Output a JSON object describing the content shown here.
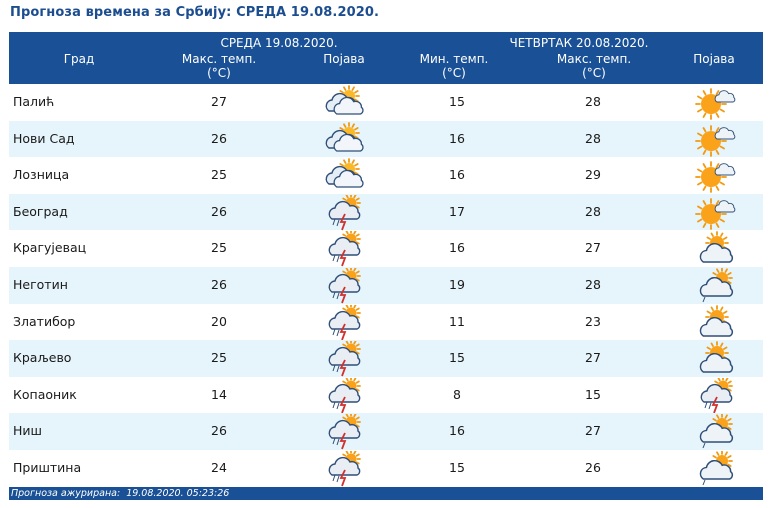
{
  "title": "Прогноза времена за Србију: СРЕДА  19.08.2020.",
  "header": {
    "city": "Град",
    "day1": "СРЕДА  19.08.2020.",
    "day1_max_line1": "Макс. темп.",
    "day1_max_line2": "(°C)",
    "day1_phen": "Појава",
    "day2": "ЧЕТВРТАК  20.08.2020.",
    "day2_min_line1": "Мин. темп.",
    "day2_min_line2": "(°C)",
    "day2_max_line1": "Макс. темп.",
    "day2_max_line2": "(°C)",
    "day2_phen": "Појава"
  },
  "rows": [
    {
      "city": "Палић",
      "d1max": "27",
      "d1icon": "cloudy-sun-icon",
      "d2min": "15",
      "d2max": "28",
      "d2icon": "mostly-sunny-icon"
    },
    {
      "city": "Нови Сад",
      "d1max": "26",
      "d1icon": "cloudy-sun-icon",
      "d2min": "16",
      "d2max": "28",
      "d2icon": "mostly-sunny-icon"
    },
    {
      "city": "Лозница",
      "d1max": "25",
      "d1icon": "cloudy-sun-icon",
      "d2min": "16",
      "d2max": "29",
      "d2icon": "mostly-sunny-icon"
    },
    {
      "city": "Београд",
      "d1max": "26",
      "d1icon": "thunderstorm-icon",
      "d2min": "17",
      "d2max": "28",
      "d2icon": "mostly-sunny-icon"
    },
    {
      "city": "Крагујевац",
      "d1max": "25",
      "d1icon": "thunderstorm-icon",
      "d2min": "16",
      "d2max": "27",
      "d2icon": "partly-cloudy-icon"
    },
    {
      "city": "Неготин",
      "d1max": "26",
      "d1icon": "thunderstorm-icon",
      "d2min": "19",
      "d2max": "28",
      "d2icon": "light-rain-sun-icon"
    },
    {
      "city": "Златибор",
      "d1max": "20",
      "d1icon": "thunderstorm-icon",
      "d2min": "11",
      "d2max": "23",
      "d2icon": "partly-cloudy-icon"
    },
    {
      "city": "Краљево",
      "d1max": "25",
      "d1icon": "thunderstorm-icon",
      "d2min": "15",
      "d2max": "27",
      "d2icon": "partly-cloudy-icon"
    },
    {
      "city": "Копаоник",
      "d1max": "14",
      "d1icon": "thunderstorm-icon",
      "d2min": "8",
      "d2max": "15",
      "d2icon": "thunderstorm-icon"
    },
    {
      "city": "Ниш",
      "d1max": "26",
      "d1icon": "thunderstorm-icon",
      "d2min": "16",
      "d2max": "27",
      "d2icon": "light-rain-sun-icon"
    },
    {
      "city": "Приштина",
      "d1max": "24",
      "d1icon": "thunderstorm-icon",
      "d2min": "15",
      "d2max": "26",
      "d2icon": "light-rain-sun-icon"
    }
  ],
  "footer": {
    "label": "Прогноза ажурирана:",
    "updated": "19.08.2020. 05:23:26"
  },
  "colors": {
    "header_bg": "#1a5196",
    "alt_row": "#e6f4fb",
    "title": "#1c4d8f"
  }
}
